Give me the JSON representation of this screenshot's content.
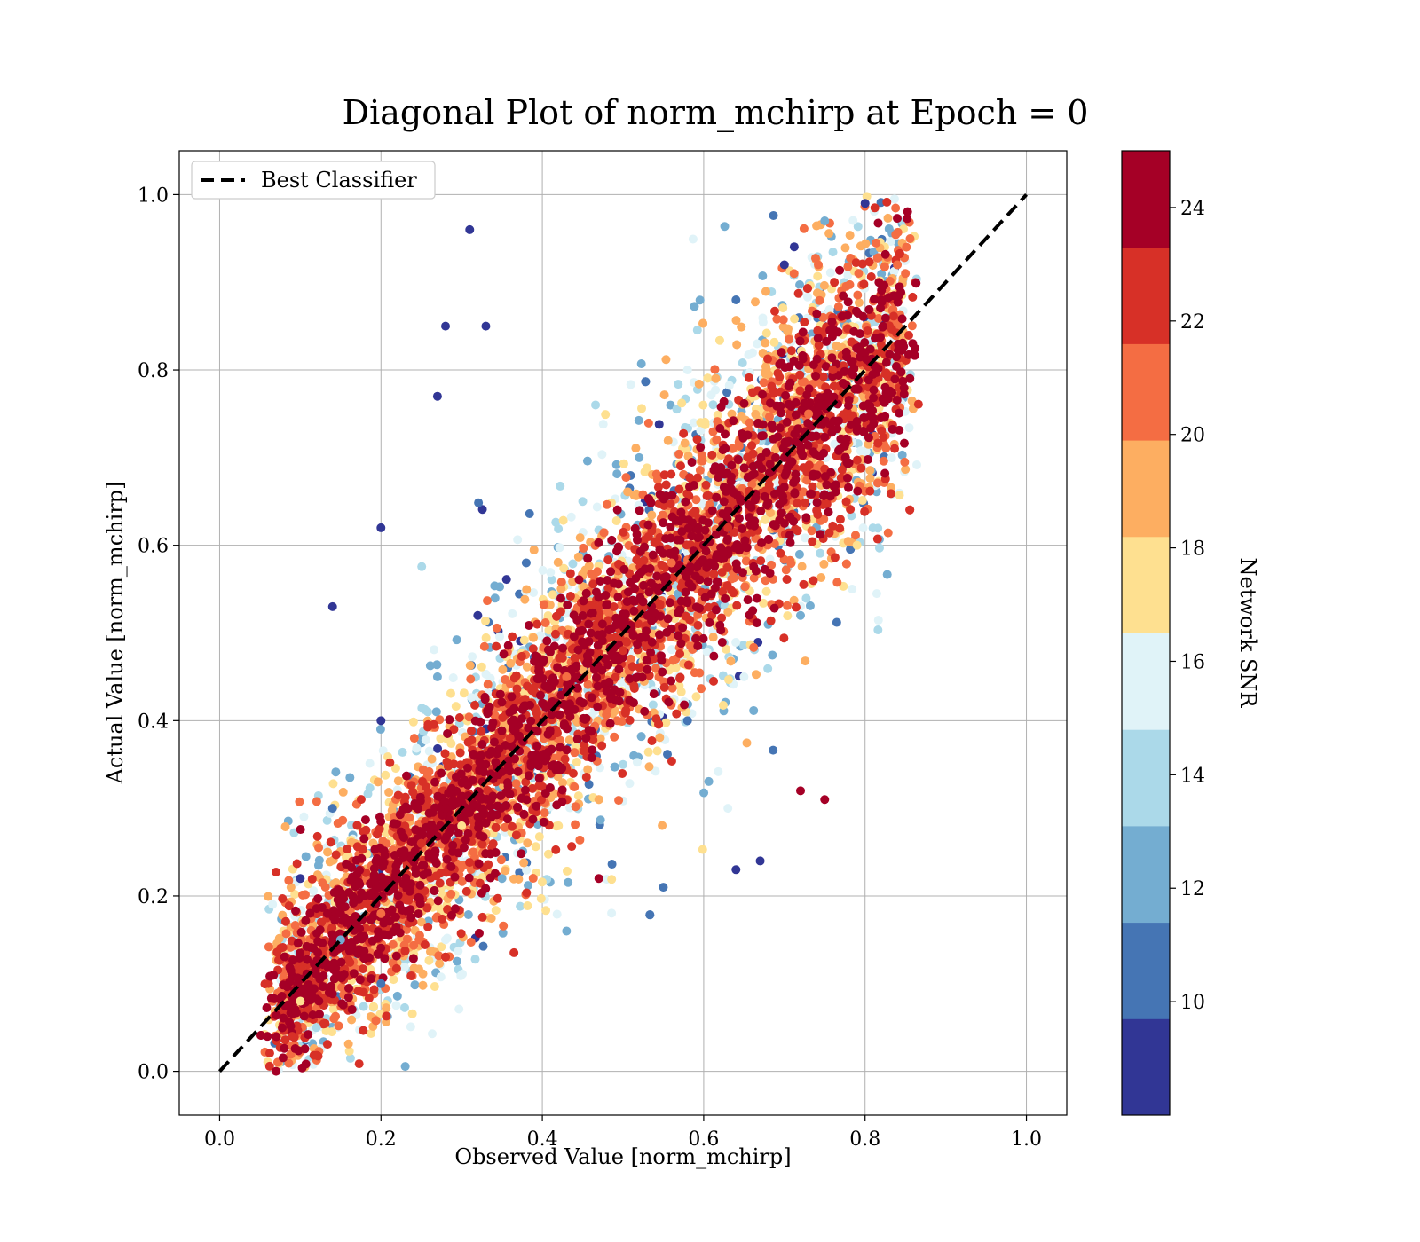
{
  "chart_data": {
    "type": "scatter",
    "title": "Diagonal Plot of norm_mchirp at Epoch = 0",
    "xlabel": "Observed Value [norm_mchirp]",
    "ylabel": "Actual Value [norm_mchirp]",
    "xlim": [
      -0.05,
      1.05
    ],
    "ylim": [
      -0.05,
      1.05
    ],
    "xticks": [
      "0.0",
      "0.2",
      "0.4",
      "0.6",
      "0.8",
      "1.0"
    ],
    "yticks": [
      "0.0",
      "0.2",
      "0.4",
      "0.6",
      "0.8",
      "1.0"
    ],
    "grid": true,
    "legend": {
      "placement": "upper-left",
      "entries": [
        {
          "label": "Best Classifier",
          "style": "dashed",
          "color": "#000000"
        }
      ]
    },
    "reference_line": {
      "x": [
        0.0,
        1.0
      ],
      "y": [
        0.0,
        1.0
      ]
    },
    "colorbar": {
      "label": "Network SNR",
      "range": [
        8.0,
        25.0
      ],
      "levels": 10,
      "ticks": [
        "10",
        "12",
        "14",
        "16",
        "18",
        "20",
        "22",
        "24"
      ],
      "colors": [
        "#313695",
        "#4575b4",
        "#74add1",
        "#abd9e9",
        "#e0f3f8",
        "#fee090",
        "#fdae61",
        "#f46d43",
        "#d73027",
        "#a50026"
      ]
    },
    "points_description_only": "dense cloud of several thousand points along the diagonal, spread ~±0.25",
    "series": [
      {
        "name": "",
        "x": [
          0.07,
          0.09,
          0.1,
          0.12,
          0.15,
          0.18,
          0.2,
          0.22,
          0.25,
          0.28,
          0.3,
          0.33,
          0.36,
          0.4,
          0.43,
          0.46,
          0.5,
          0.53,
          0.56,
          0.6,
          0.63,
          0.66,
          0.7,
          0.73,
          0.76,
          0.8,
          0.82,
          0.84,
          0.1,
          0.14,
          0.2,
          0.27,
          0.32,
          0.38,
          0.45,
          0.52,
          0.58,
          0.64,
          0.7,
          0.75,
          0.8,
          0.12,
          0.2,
          0.28,
          0.35,
          0.42,
          0.5,
          0.58,
          0.65,
          0.72,
          0.79,
          0.31,
          0.28,
          0.33,
          0.27,
          0.14,
          0.2,
          0.75,
          0.67,
          0.43,
          0.64,
          0.55,
          0.47,
          0.63,
          0.72
        ],
        "y": [
          0.0,
          0.04,
          0.08,
          0.12,
          0.15,
          0.2,
          0.18,
          0.22,
          0.26,
          0.3,
          0.28,
          0.35,
          0.38,
          0.42,
          0.45,
          0.5,
          0.48,
          0.52,
          0.58,
          0.6,
          0.62,
          0.68,
          0.7,
          0.75,
          0.8,
          0.82,
          0.88,
          0.92,
          0.22,
          0.3,
          0.4,
          0.45,
          0.52,
          0.58,
          0.65,
          0.7,
          0.8,
          0.88,
          0.92,
          0.97,
          0.99,
          0.05,
          0.1,
          0.15,
          0.22,
          0.28,
          0.35,
          0.4,
          0.45,
          0.52,
          0.6,
          0.96,
          0.85,
          0.85,
          0.77,
          0.53,
          0.62,
          0.31,
          0.24,
          0.16,
          0.23,
          0.21,
          0.22,
          0.3,
          0.32
        ],
        "snr": [
          24,
          22,
          18,
          24,
          12,
          24,
          20,
          24,
          22,
          24,
          18,
          24,
          22,
          24,
          20,
          24,
          22,
          24,
          20,
          24,
          22,
          24,
          24,
          20,
          22,
          24,
          24,
          20,
          8,
          10,
          8,
          12,
          8,
          10,
          14,
          12,
          16,
          10,
          8,
          12,
          8,
          14,
          10,
          16,
          12,
          18,
          14,
          10,
          16,
          12,
          18,
          8,
          8,
          8,
          8,
          8,
          8,
          24,
          8,
          12,
          8,
          10,
          24,
          16,
          24
        ]
      }
    ]
  }
}
